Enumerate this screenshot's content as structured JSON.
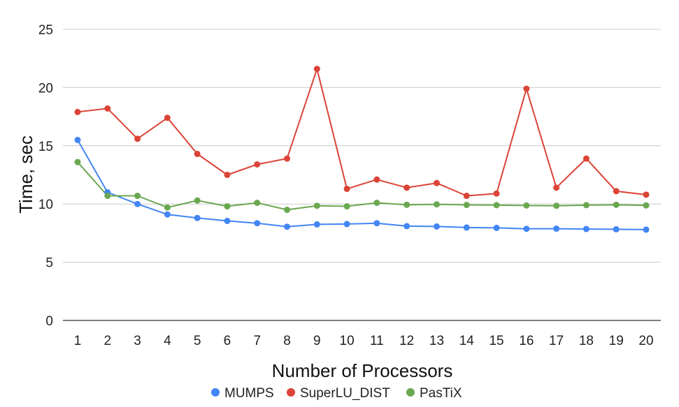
{
  "chart_data": {
    "type": "line",
    "xlabel": "Number of Processors",
    "ylabel": "Time, sec",
    "ylim": [
      0,
      25
    ],
    "yticks": [
      "0",
      "5",
      "10",
      "15",
      "20",
      "25"
    ],
    "grid": "horizontal",
    "legend_position": "bottom",
    "categories": [
      "1",
      "2",
      "3",
      "4",
      "5",
      "6",
      "7",
      "8",
      "9",
      "10",
      "11",
      "12",
      "13",
      "14",
      "15",
      "16",
      "17",
      "18",
      "19",
      "20"
    ],
    "series": [
      {
        "name": "MUMPS",
        "color": "#4285f4",
        "values": [
          15.5,
          11.0,
          10.0,
          9.1,
          8.8,
          8.55,
          8.35,
          8.05,
          8.25,
          8.28,
          8.35,
          8.1,
          8.07,
          7.98,
          7.95,
          7.87,
          7.88,
          7.85,
          7.83,
          7.8
        ]
      },
      {
        "name": "SuperLU_DIST",
        "color": "#db4437",
        "values": [
          17.9,
          18.2,
          15.6,
          17.4,
          14.3,
          12.5,
          13.4,
          13.9,
          21.6,
          11.3,
          12.1,
          11.4,
          11.8,
          10.7,
          10.9,
          19.9,
          11.4,
          13.9,
          11.1,
          10.8
        ]
      },
      {
        "name": "PasTiX",
        "color": "#6aa84f",
        "values": [
          13.6,
          10.7,
          10.7,
          9.7,
          10.3,
          9.8,
          10.1,
          9.5,
          9.85,
          9.8,
          10.1,
          9.93,
          9.97,
          9.92,
          9.9,
          9.87,
          9.85,
          9.9,
          9.93,
          9.88
        ]
      }
    ]
  }
}
